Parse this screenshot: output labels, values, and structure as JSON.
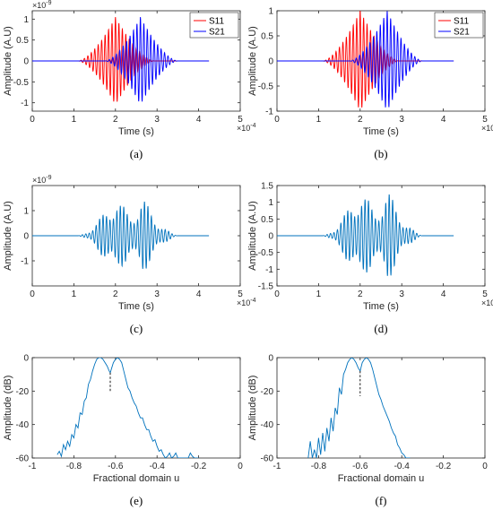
{
  "chart_data": [
    {
      "id": "a",
      "type": "line",
      "panel_label": "(a)",
      "xlabel": "Time (s)",
      "ylabel": "Amplitude (A.U)",
      "xlim": [
        0,
        5
      ],
      "ylim": [
        -1.2,
        1.2
      ],
      "xticks": [
        0,
        1,
        2,
        3,
        4,
        5
      ],
      "yticks": [
        -1,
        -0.5,
        0,
        0.5,
        1
      ],
      "xtick_labels": [
        "0",
        "1",
        "2",
        "3",
        "4",
        "5"
      ],
      "ytick_labels": [
        "-1",
        "-0.5",
        "0",
        "0.5",
        "1"
      ],
      "x_exponent": "×10^-4",
      "y_exponent": "×10^-9",
      "legend": {
        "position": "top-right",
        "entries": [
          "S11",
          "S21"
        ]
      },
      "series": [
        {
          "name": "S11",
          "color": "#ff0000",
          "kind": "packet",
          "start": 1.1,
          "end": 2.95,
          "center": 2.0,
          "amplitude": 1.05,
          "period": 0.083,
          "x_end": 4.25
        },
        {
          "name": "S21",
          "color": "#0000ff",
          "kind": "packet",
          "start": 1.75,
          "end": 3.5,
          "center": 2.6,
          "amplitude": 1.05,
          "period": 0.083,
          "x_end": 4.25
        }
      ]
    },
    {
      "id": "b",
      "type": "line",
      "panel_label": "(b)",
      "xlabel": "Time (s)",
      "ylabel": "Amplitude (A.U)",
      "xlim": [
        0,
        5
      ],
      "ylim": [
        -1,
        1
      ],
      "xticks": [
        0,
        1,
        2,
        3,
        4,
        5
      ],
      "yticks": [
        -1,
        -0.5,
        0,
        0.5,
        1
      ],
      "xtick_labels": [
        "0",
        "1",
        "2",
        "3",
        "4",
        "5"
      ],
      "ytick_labels": [
        "-1",
        "-0.5",
        "0",
        "0.5",
        "1"
      ],
      "x_exponent": "×10^-4",
      "y_exponent": "",
      "legend": {
        "position": "top-right",
        "entries": [
          "S11",
          "S21"
        ]
      },
      "series": [
        {
          "name": "S11",
          "color": "#ff0000",
          "kind": "packet",
          "start": 1.1,
          "end": 2.95,
          "center": 2.0,
          "amplitude": 1.0,
          "period": 0.083,
          "x_end": 4.25
        },
        {
          "name": "S21",
          "color": "#0000ff",
          "kind": "packet",
          "start": 1.75,
          "end": 3.5,
          "center": 2.65,
          "amplitude": 1.0,
          "period": 0.083,
          "x_end": 4.25
        }
      ]
    },
    {
      "id": "c",
      "type": "line",
      "panel_label": "(c)",
      "xlabel": "Time (s)",
      "ylabel": "Amplitude (A.U)",
      "xlim": [
        0,
        5
      ],
      "ylim": [
        -2,
        2
      ],
      "xticks": [
        0,
        1,
        2,
        3,
        4,
        5
      ],
      "yticks": [
        -1,
        0,
        1
      ],
      "xtick_labels": [
        "0",
        "1",
        "2",
        "3",
        "4",
        "5"
      ],
      "ytick_labels": [
        "-1",
        "0",
        "1"
      ],
      "x_exponent": "×10^-4",
      "y_exponent": "×10^-9",
      "legend": null,
      "series": [
        {
          "name": "",
          "color": "#0072bd",
          "kind": "sum",
          "start": 1.1,
          "end": 3.5,
          "center": 2.2,
          "amplitude": 1.65,
          "period": 0.083,
          "x_end": 4.25
        }
      ]
    },
    {
      "id": "d",
      "type": "line",
      "panel_label": "(d)",
      "xlabel": "Time (s)",
      "ylabel": "Amplitude (A.U)",
      "xlim": [
        0,
        5
      ],
      "ylim": [
        -1.5,
        1.5
      ],
      "xticks": [
        0,
        1,
        2,
        3,
        4,
        5
      ],
      "yticks": [
        -1.5,
        -1,
        -0.5,
        0,
        0.5,
        1,
        1.5
      ],
      "xtick_labels": [
        "0",
        "1",
        "2",
        "3",
        "4",
        "5"
      ],
      "ytick_labels": [
        "-1.5",
        "-1",
        "-0.5",
        "0",
        "0.5",
        "1",
        "1.5"
      ],
      "x_exponent": "×10^-4",
      "y_exponent": "",
      "legend": null,
      "series": [
        {
          "name": "",
          "color": "#0072bd",
          "kind": "sum",
          "start": 1.1,
          "end": 3.5,
          "center": 2.2,
          "amplitude": 1.5,
          "period": 0.083,
          "x_end": 4.25
        }
      ]
    },
    {
      "id": "e",
      "type": "line",
      "panel_label": "(e)",
      "xlabel": "Fractional domain u",
      "ylabel": "Amplitude (dB)",
      "xlim": [
        -1,
        0
      ],
      "ylim": [
        -60,
        0
      ],
      "xticks": [
        -1,
        -0.8,
        -0.6,
        -0.4,
        -0.2,
        0
      ],
      "yticks": [
        -60,
        -40,
        -20,
        0
      ],
      "xtick_labels": [
        "-1",
        "-0.8",
        "-0.6",
        "-0.4",
        "-0.2",
        "0"
      ],
      "ytick_labels": [
        "-60",
        "-40",
        "-20",
        "0"
      ],
      "x_exponent": "",
      "y_exponent": "",
      "legend": null,
      "marker_line": {
        "x": -0.625,
        "y_top": -9,
        "y_bottom": -21
      },
      "series": [
        {
          "name": "",
          "color": "#0072bd",
          "kind": "spectrum",
          "x": [
            -0.88,
            -0.87,
            -0.86,
            -0.85,
            -0.84,
            -0.83,
            -0.82,
            -0.81,
            -0.8,
            -0.79,
            -0.78,
            -0.77,
            -0.76,
            -0.75,
            -0.74,
            -0.73,
            -0.72,
            -0.71,
            -0.7,
            -0.69,
            -0.68,
            -0.67,
            -0.66,
            -0.65,
            -0.64,
            -0.63,
            -0.625,
            -0.62,
            -0.61,
            -0.6,
            -0.59,
            -0.58,
            -0.57,
            -0.56,
            -0.55,
            -0.54,
            -0.53,
            -0.52,
            -0.51,
            -0.5,
            -0.49,
            -0.48,
            -0.47,
            -0.46,
            -0.45,
            -0.44,
            -0.43,
            -0.42,
            -0.41,
            -0.4,
            -0.39,
            -0.38,
            -0.37,
            -0.36,
            -0.35,
            -0.34,
            -0.33,
            -0.32,
            -0.31,
            -0.3,
            -0.29,
            -0.28,
            -0.27,
            -0.26,
            -0.25,
            -0.24,
            -0.23,
            -0.22,
            -0.21,
            -0.2
          ],
          "y": [
            -58,
            -56,
            -59,
            -52,
            -55,
            -50,
            -53,
            -46,
            -48,
            -40,
            -42,
            -33,
            -34,
            -26,
            -24,
            -16,
            -13,
            -8,
            -4,
            -1,
            0,
            0,
            -1,
            -3,
            -5,
            -8,
            -9,
            -7,
            -3,
            -1,
            0,
            -1,
            -3,
            -8,
            -13,
            -18,
            -20,
            -24,
            -27,
            -29,
            -33,
            -36,
            -36,
            -40,
            -43,
            -43,
            -47,
            -50,
            -49,
            -53,
            -56,
            -55,
            -58,
            -60,
            -59,
            -57,
            -60,
            -59,
            -57,
            -60,
            -60,
            -60,
            -60,
            -60,
            -60,
            -57,
            -59,
            -60,
            -60,
            -60
          ]
        }
      ]
    },
    {
      "id": "f",
      "type": "line",
      "panel_label": "(f)",
      "xlabel": "Fractional domain u",
      "ylabel": "Amplitude (dB)",
      "xlim": [
        -1,
        0
      ],
      "ylim": [
        -60,
        0
      ],
      "xticks": [
        -1,
        -0.8,
        -0.6,
        -0.4,
        -0.2,
        0
      ],
      "yticks": [
        -60,
        -40,
        -20,
        0
      ],
      "xtick_labels": [
        "-1",
        "-0.8",
        "-0.6",
        "-0.4",
        "-0.2",
        "0"
      ],
      "ytick_labels": [
        "-60",
        "-40",
        "-20",
        "0"
      ],
      "x_exponent": "",
      "y_exponent": "",
      "legend": null,
      "marker_line": {
        "x": -0.6,
        "y_top": -8,
        "y_bottom": -23
      },
      "series": [
        {
          "name": "",
          "color": "#0072bd",
          "kind": "spectrum",
          "x": [
            -0.85,
            -0.84,
            -0.83,
            -0.82,
            -0.81,
            -0.8,
            -0.79,
            -0.78,
            -0.77,
            -0.76,
            -0.75,
            -0.74,
            -0.73,
            -0.72,
            -0.71,
            -0.7,
            -0.69,
            -0.68,
            -0.67,
            -0.66,
            -0.65,
            -0.64,
            -0.63,
            -0.62,
            -0.61,
            -0.6,
            -0.59,
            -0.58,
            -0.57,
            -0.56,
            -0.55,
            -0.54,
            -0.53,
            -0.52,
            -0.51,
            -0.5,
            -0.49,
            -0.48,
            -0.47,
            -0.46,
            -0.45,
            -0.44,
            -0.43,
            -0.42,
            -0.41,
            -0.4,
            -0.39,
            -0.38,
            -0.37,
            -0.36
          ],
          "y": [
            -60,
            -50,
            -60,
            -55,
            -60,
            -48,
            -58,
            -45,
            -56,
            -42,
            -50,
            -36,
            -44,
            -30,
            -34,
            -18,
            -22,
            -10,
            -7,
            -3,
            -1,
            0,
            -1,
            -3,
            -6,
            -8,
            -3,
            -1,
            0,
            -1,
            -3,
            -7,
            -12,
            -17,
            -22,
            -25,
            -29,
            -32,
            -35,
            -38,
            -42,
            -45,
            -47,
            -52,
            -54,
            -57,
            -58,
            -60,
            -60,
            -60
          ]
        }
      ]
    }
  ]
}
